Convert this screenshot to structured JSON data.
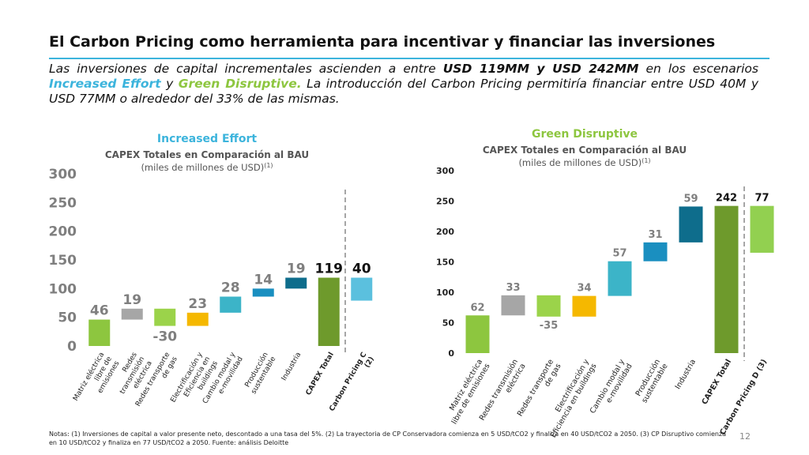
{
  "title": "El Carbon Pricing como herramienta para incentivar y financiar las inversiones",
  "intro": [
    "Las inversiones de capital incrementales ascienden a entre ",
    "USD 119MM y USD 242MM",
    " en los escenarios ",
    "Increased Effort",
    " y ",
    "Green Disruptive.",
    " La introducción del Carbon Pricing permitiría financiar entre USD 40M y USD 77MM o alrededor del 33% de las mismas."
  ],
  "notes": "Notas: (1) Inversiones de capital a valor presente neto, descontado a una tasa del 5%. (2) La trayectoria de CP Conservadora comienza en 5 USD/tCO2 y finaliza en 40 USD/tCO2 a 2050. (3) CP Disruptivo comienza en 10 USD/tCO2 y finaliza en 77 USD/tCO2 a 2050. Fuente: análisis Deloitte",
  "page_number": "12",
  "chart_data": [
    {
      "type": "waterfall",
      "subtitle": "Increased Effort",
      "subtitle_color": "#3cb4dc",
      "title": "CAPEX Totales en Comparación al BAU",
      "unit": "(miles de millones de USD)",
      "unit_note": "(1)",
      "categories": [
        [
          "Matriz eléctrica",
          "libre de",
          "emisiones"
        ],
        [
          "Redes",
          "transmisión",
          "eléctrica"
        ],
        [
          "Redes transporte",
          "de gas"
        ],
        [
          "Electrificación y",
          "Eficiencia en",
          "buildings"
        ],
        [
          "Cambio modal y",
          "e-movilidad"
        ],
        [
          "Producción",
          "sustentable"
        ],
        [
          "Industria"
        ],
        [
          "CAPEX Total"
        ],
        [
          "Carbon Pricing C",
          "(2)"
        ]
      ],
      "values": [
        46,
        19,
        -30,
        23,
        28,
        14,
        19,
        119,
        40
      ],
      "measure": [
        "relative",
        "relative",
        "relative",
        "relative",
        "relative",
        "relative",
        "relative",
        "total",
        "offset"
      ],
      "colors": [
        "#8dc63f",
        "#a6a6a6",
        "#9bd34a",
        "#f5b800",
        "#3cb4c8",
        "#1a8fc0",
        "#0e6d8c",
        "#6e9a2c",
        "#5bc0de"
      ],
      "ylim": [
        0,
        300
      ],
      "yticks": [
        0,
        50,
        100,
        150,
        200,
        250,
        300
      ]
    },
    {
      "type": "waterfall",
      "subtitle": "Green Disruptive",
      "subtitle_color": "#8dc63f",
      "title": "CAPEX Totales en Comparación al BAU",
      "unit": "(miles de millones de USD)",
      "unit_note": "(1)",
      "categories": [
        [
          "Matriz eléctrica",
          "libre de emisiones"
        ],
        [
          "Redes transmisión",
          "eléctrica"
        ],
        [
          "Redes transporte",
          "de gas"
        ],
        [
          "Electrificación y",
          "Eficiencia en buildings"
        ],
        [
          "Cambio modal y",
          "e-movilidad"
        ],
        [
          "Producción",
          "sustentable"
        ],
        [
          "Industria"
        ],
        [
          "CAPEX Total"
        ],
        [
          "Carbon Pricing D (3)"
        ]
      ],
      "values": [
        62,
        33,
        -35,
        34,
        57,
        31,
        59,
        242,
        77
      ],
      "measure": [
        "relative",
        "relative",
        "relative",
        "relative",
        "relative",
        "relative",
        "relative",
        "total",
        "offset"
      ],
      "colors": [
        "#8dc63f",
        "#a6a6a6",
        "#9bd34a",
        "#f5b800",
        "#3cb4c8",
        "#1a8fc0",
        "#0e6d8c",
        "#6e9a2c",
        "#92d050"
      ],
      "ylim": [
        0,
        300
      ],
      "yticks": [
        0,
        50,
        100,
        150,
        200,
        250,
        300
      ]
    }
  ]
}
